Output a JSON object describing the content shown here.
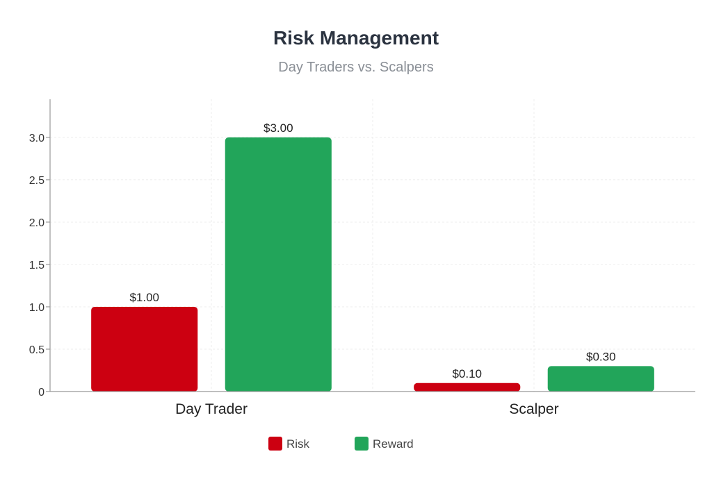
{
  "chart_data": {
    "type": "bar",
    "title": "Risk Management",
    "subtitle": "Day Traders vs. Scalpers",
    "categories": [
      "Day Trader",
      "Scalper"
    ],
    "series": [
      {
        "name": "Risk",
        "values": [
          1.0,
          0.1
        ],
        "labels": [
          "$1.00",
          "$0.10"
        ],
        "color": "#cc0011"
      },
      {
        "name": "Reward",
        "values": [
          3.0,
          0.3
        ],
        "labels": [
          "$3.00",
          "$0.30"
        ],
        "color": "#22a55a"
      }
    ],
    "yticks": [
      "0",
      "0.5",
      "1.0",
      "1.5",
      "2.0",
      "2.5",
      "3.0"
    ],
    "ylim": [
      0,
      3.45
    ],
    "xlabel": "",
    "ylabel": "",
    "grid": true,
    "legend": "bottom-center"
  }
}
